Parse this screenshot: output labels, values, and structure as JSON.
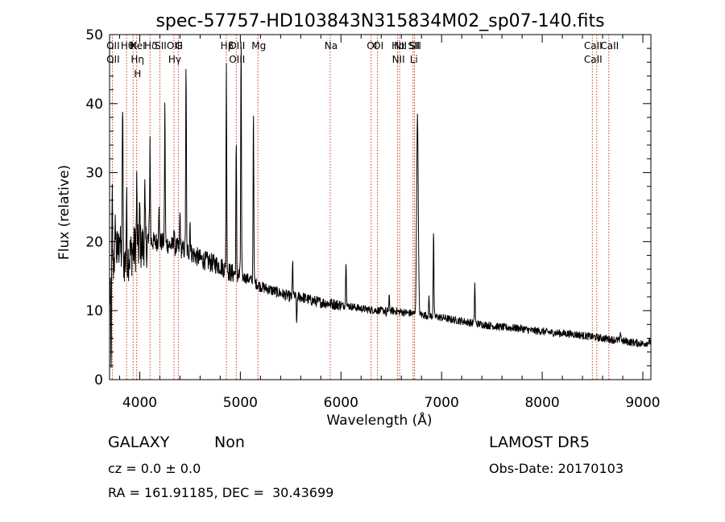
{
  "chart_data": {
    "type": "line",
    "title": "spec-57757-HD103843N315834M02_sp07-140.fits",
    "xlabel": "Wavelength (Å)",
    "ylabel": "Flux (relative)",
    "xlim": [
      3700,
      9080
    ],
    "ylim": [
      0,
      50
    ],
    "xticks": [
      4000,
      5000,
      6000,
      7000,
      8000,
      9000
    ],
    "yticks": [
      0,
      10,
      20,
      30,
      40,
      50
    ],
    "grid": false,
    "continuum": {
      "x": [
        3700,
        3750,
        3800,
        3850,
        3900,
        3950,
        4000,
        4050,
        4100,
        4200,
        4300,
        4400,
        4500,
        4600,
        4700,
        4800,
        4900,
        5000,
        5100,
        5200,
        5300,
        5400,
        5500,
        5600,
        5700,
        5800,
        5900,
        6000,
        6100,
        6200,
        6300,
        6400,
        6500,
        6600,
        6700,
        6800,
        6900,
        7000,
        7100,
        7200,
        7300,
        7400,
        7500,
        7600,
        7700,
        7800,
        7900,
        8000,
        8100,
        8200,
        8300,
        8400,
        8500,
        8600,
        8700,
        8800,
        8900,
        9000,
        9080
      ],
      "y": [
        12,
        18,
        19,
        17,
        18,
        19,
        19,
        19.5,
        20,
        20,
        19.5,
        19,
        18.5,
        17.5,
        17,
        16.5,
        15.5,
        15,
        14.5,
        13.5,
        13,
        12.5,
        12,
        12,
        11.5,
        11.2,
        11,
        10.8,
        10.6,
        10.3,
        10.1,
        10,
        10,
        9.8,
        9.6,
        9.4,
        9.2,
        9,
        8.7,
        8.5,
        8.2,
        8,
        7.8,
        7.6,
        7.5,
        7.4,
        7.1,
        7,
        6.8,
        6.7,
        6.6,
        6.4,
        6.2,
        6,
        5.8,
        5.6,
        5.4,
        5.2,
        5.5
      ]
    },
    "emission_peaks": [
      {
        "x": 3727,
        "y": 26
      },
      {
        "x": 3760,
        "y": 23
      },
      {
        "x": 3800,
        "y": 22
      },
      {
        "x": 3830,
        "y": 41
      },
      {
        "x": 3869,
        "y": 26
      },
      {
        "x": 3970,
        "y": 28
      },
      {
        "x": 4000,
        "y": 25
      },
      {
        "x": 4050,
        "y": 27
      },
      {
        "x": 4102,
        "y": 35
      },
      {
        "x": 4190,
        "y": 25
      },
      {
        "x": 4250,
        "y": 40
      },
      {
        "x": 4340,
        "y": 22
      },
      {
        "x": 4400,
        "y": 24
      },
      {
        "x": 4460,
        "y": 45
      },
      {
        "x": 4500,
        "y": 23
      },
      {
        "x": 4861,
        "y": 45
      },
      {
        "x": 4959,
        "y": 34
      },
      {
        "x": 5007,
        "y": 49
      },
      {
        "x": 5130,
        "y": 40
      },
      {
        "x": 5520,
        "y": 17
      },
      {
        "x": 6050,
        "y": 17.5
      },
      {
        "x": 6480,
        "y": 12
      },
      {
        "x": 6760,
        "y": 38
      },
      {
        "x": 6875,
        "y": 12
      },
      {
        "x": 6920,
        "y": 21.5
      },
      {
        "x": 7330,
        "y": 14
      },
      {
        "x": 8780,
        "y": 7
      }
    ],
    "absorption_dips": [
      {
        "x": 3715,
        "y": 0.5
      },
      {
        "x": 5560,
        "y": 7.5
      },
      {
        "x": 6450,
        "y": 9
      }
    ],
    "spectral_lines": [
      {
        "x": 3727,
        "labels": [
          "OII",
          "OII"
        ]
      },
      {
        "x": 3869,
        "labels": [
          "Hθ"
        ]
      },
      {
        "x": 3934,
        "labels": [
          "K"
        ]
      },
      {
        "x": 3970,
        "labels": [
          "HeI",
          "Hη",
          "H"
        ]
      },
      {
        "x": 4102,
        "labels": [
          "Hδ"
        ]
      },
      {
        "x": 4200,
        "labels": [
          "SII"
        ]
      },
      {
        "x": 4340,
        "labels": [
          "OIII",
          "Hγ"
        ]
      },
      {
        "x": 4383,
        "labels": [
          "G"
        ]
      },
      {
        "x": 4861,
        "labels": [
          "Hβ"
        ]
      },
      {
        "x": 4959,
        "labels": [
          "OIII",
          "OIII"
        ]
      },
      {
        "x": 5175,
        "labels": [
          "Mg"
        ]
      },
      {
        "x": 5893,
        "labels": [
          "Na"
        ]
      },
      {
        "x": 6300,
        "labels": [
          "OI"
        ]
      },
      {
        "x": 6363,
        "labels": [
          "OI"
        ]
      },
      {
        "x": 6563,
        "labels": [
          "Hα",
          "NII"
        ]
      },
      {
        "x": 6583,
        "labels": [
          "NII"
        ]
      },
      {
        "x": 6716,
        "labels": [
          "SII",
          "Li"
        ]
      },
      {
        "x": 6731,
        "labels": [
          "SII"
        ]
      },
      {
        "x": 8498,
        "labels": [
          "CaII",
          "CaII"
        ]
      },
      {
        "x": 8542,
        "labels": []
      },
      {
        "x": 8662,
        "labels": [
          "CaII"
        ]
      }
    ]
  },
  "info": {
    "class_label": "GALAXY",
    "subclass_label": "Non",
    "survey": "LAMOST DR5",
    "redshift": "cz = 0.0 ± 0.0",
    "obs_date": "Obs-Date: 20170103",
    "coords": "RA = 161.91185, DEC =  30.43699"
  },
  "colors": {
    "spectrum": "#000000",
    "line_markers": "#cc2200",
    "axes": "#000000",
    "background": "#ffffff"
  }
}
